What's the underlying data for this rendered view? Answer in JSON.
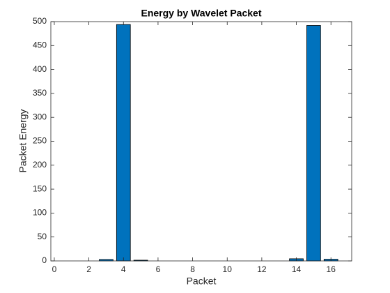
{
  "chart_data": {
    "type": "bar",
    "title": "Energy by Wavelet Packet",
    "xlabel": "Packet",
    "ylabel": "Packet Energy",
    "x": [
      1,
      2,
      3,
      4,
      5,
      6,
      7,
      8,
      9,
      10,
      11,
      12,
      13,
      14,
      15,
      16
    ],
    "values": [
      0,
      0,
      3,
      494,
      1.5,
      0,
      0,
      0,
      0,
      0,
      0,
      0,
      0,
      4.5,
      492,
      3.5
    ],
    "color": "#0072bd",
    "xlim": [
      -0.2,
      17.2
    ],
    "xticks": [
      0,
      2,
      4,
      6,
      8,
      10,
      12,
      14,
      16
    ],
    "ylim": [
      0,
      500
    ],
    "yticks": [
      0,
      50,
      100,
      150,
      200,
      250,
      300,
      350,
      400,
      450,
      500
    ]
  }
}
